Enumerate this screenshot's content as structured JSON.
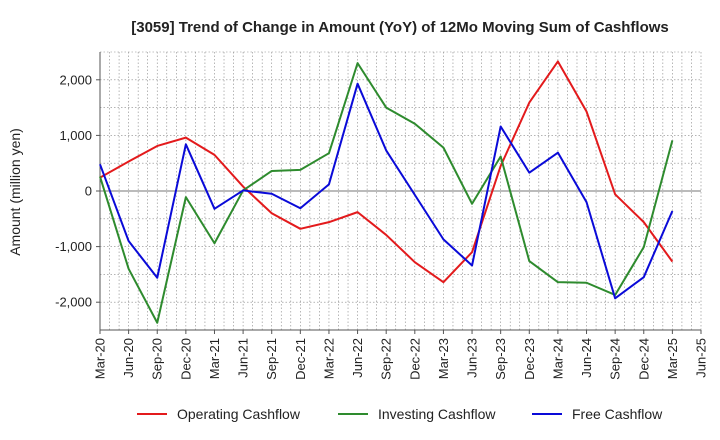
{
  "chart_data": {
    "type": "line",
    "title": "[3059]  Trend of Change in Amount (YoY) of 12Mo Moving Sum of Cashflows",
    "xlabel": "",
    "ylabel": "Amount (million yen)",
    "ylim": [
      -2500,
      2500
    ],
    "yticks": [
      -2000,
      -1000,
      0,
      1000,
      2000
    ],
    "ytick_labels": [
      "-2,000",
      "-1,000",
      "0",
      "1,000",
      "2,000"
    ],
    "grid": true,
    "legend_position": "bottom",
    "categories": [
      "Mar-20",
      "Jun-20",
      "Sep-20",
      "Dec-20",
      "Mar-21",
      "Jun-21",
      "Sep-21",
      "Dec-21",
      "Mar-22",
      "Jun-22",
      "Sep-22",
      "Dec-22",
      "Mar-23",
      "Jun-23",
      "Sep-23",
      "Dec-23",
      "Mar-24",
      "Jun-24",
      "Sep-24",
      "Dec-24",
      "Mar-25",
      "Jun-25"
    ],
    "series": [
      {
        "name": "Operating Cashflow",
        "color": "#e31a1c",
        "values": [
          240,
          530,
          810,
          960,
          650,
          80,
          -400,
          -680,
          -560,
          -380,
          -790,
          -1280,
          -1640,
          -1100,
          450,
          1590,
          2330,
          1430,
          -60,
          -560,
          -1270,
          null
        ]
      },
      {
        "name": "Investing Cashflow",
        "color": "#2e8b2e",
        "values": [
          260,
          -1400,
          -2370,
          -110,
          -940,
          10,
          360,
          380,
          680,
          2300,
          1500,
          1210,
          780,
          -230,
          620,
          -1260,
          -1640,
          -1650,
          -1870,
          -1010,
          910,
          null
        ]
      },
      {
        "name": "Free Cashflow",
        "color": "#0a0ad8",
        "values": [
          480,
          -900,
          -1560,
          840,
          -320,
          10,
          -50,
          -310,
          120,
          1930,
          730,
          -70,
          -870,
          -1340,
          1160,
          330,
          690,
          -200,
          -1930,
          -1550,
          -360,
          null
        ]
      }
    ]
  }
}
